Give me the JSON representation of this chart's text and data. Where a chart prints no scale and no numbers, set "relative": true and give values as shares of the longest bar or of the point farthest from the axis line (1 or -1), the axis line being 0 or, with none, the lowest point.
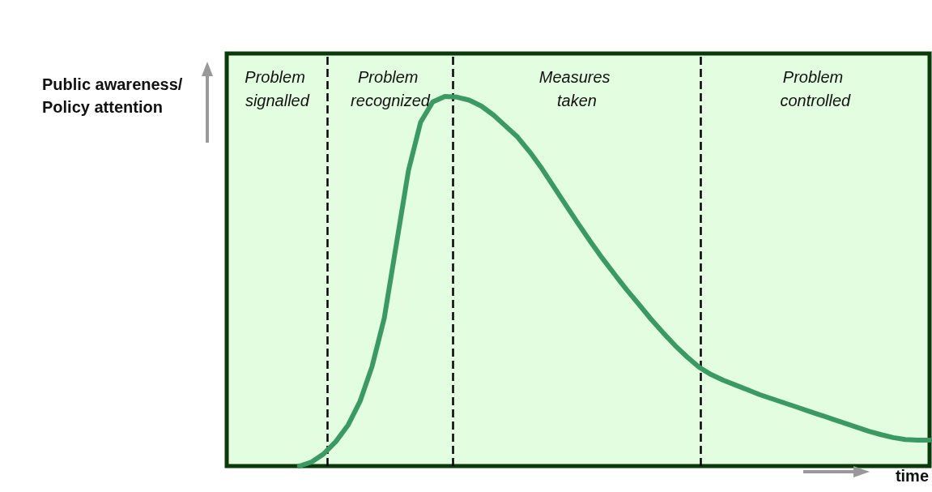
{
  "chart_data": {
    "type": "line",
    "relative": true,
    "ylabel": "Public awareness/ Policy attention",
    "xlabel": "time",
    "categories": [
      null,
      null,
      null,
      null,
      null,
      null,
      null,
      null,
      null,
      null,
      null,
      null,
      null,
      null,
      null,
      null,
      null,
      null,
      null,
      null,
      null,
      null,
      null,
      null,
      null,
      null,
      null,
      null,
      null,
      null,
      null,
      null,
      null,
      null,
      null,
      null,
      null,
      null,
      null,
      null,
      null,
      null,
      null,
      null,
      null,
      null,
      null,
      null,
      null,
      null,
      null,
      null,
      null,
      null,
      null,
      null,
      null,
      null,
      null
    ],
    "series": [
      {
        "color": "#3a9a62",
        "values": [
          null,
          null,
          null,
          null,
          null,
          null,
          0,
          0.011,
          0.033,
          0.066,
          0.11,
          0.175,
          0.27,
          0.4,
          0.6,
          0.8,
          0.93,
          0.985,
          1.0,
          0.998,
          0.99,
          0.974,
          0.95,
          0.92,
          0.89,
          0.85,
          0.805,
          0.755,
          0.705,
          0.656,
          0.608,
          0.562,
          0.519,
          0.477,
          0.438,
          0.398,
          0.361,
          0.326,
          0.295,
          0.267,
          0.247,
          0.232,
          0.219,
          0.206,
          0.193,
          0.182,
          0.171,
          0.16,
          0.149,
          0.138,
          0.127,
          0.116,
          0.105,
          0.094,
          0.085,
          0.077,
          0.072,
          0.07,
          0.07
        ]
      }
    ],
    "annotations": [
      "Problem signalled",
      "Problem recognized",
      "Measures taken",
      "Problem controlled"
    ]
  }
}
